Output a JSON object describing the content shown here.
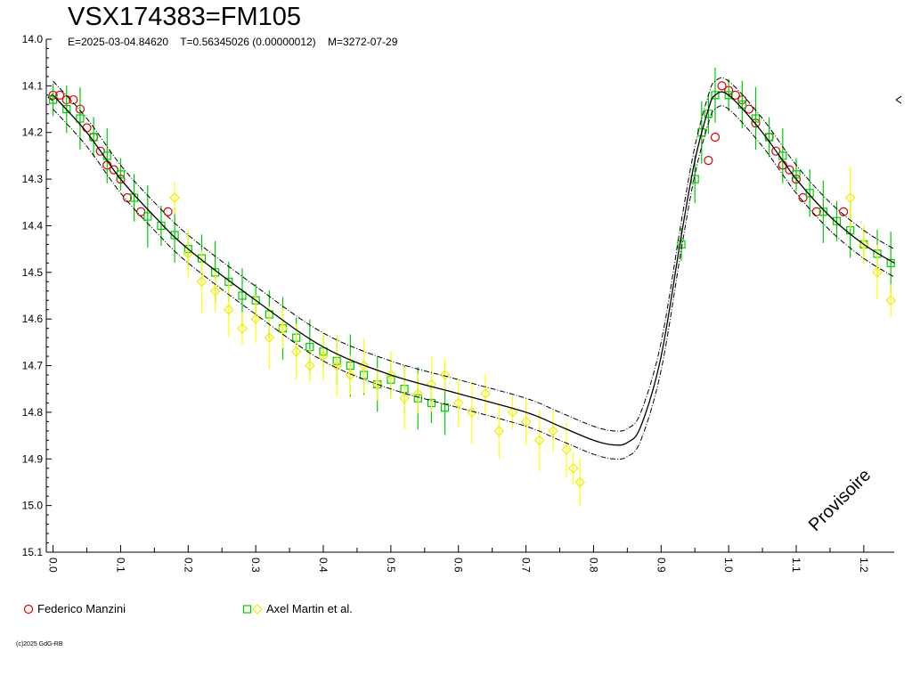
{
  "header": {
    "title": "VSX174383=FM105",
    "ephemeris": "E=2025-03-04.84620    T=0.56345026 (0.00000012)    M=3272-07-29"
  },
  "stamp": "Provisoire",
  "copyright": "(c)2025 GdG-RB",
  "colors": {
    "observer1": "#dd0000",
    "observer2_square": "#00cc00",
    "observer2_diamond": "#ffff00",
    "fit": "#000000"
  },
  "legend": [
    {
      "label": "Federico Manzini",
      "symbols": [
        "circle"
      ]
    },
    {
      "label": "Axel Martin et al.",
      "symbols": [
        "square",
        "diamond"
      ]
    }
  ],
  "chart_data": {
    "type": "scatter",
    "title": "VSX174383=FM105",
    "xlabel": "",
    "ylabel": "",
    "xlim": [
      -0.01,
      1.245
    ],
    "ylim": [
      14.0,
      15.1
    ],
    "y_inverted": true,
    "x_ticks": [
      "0.0",
      "0.1",
      "0.2",
      "0.3",
      "0.4",
      "0.5",
      "0.6",
      "0.7",
      "0.8",
      "0.9",
      "1.0",
      "1.1",
      "1.2"
    ],
    "y_ticks": [
      "14.0",
      "14.1",
      "14.2",
      "14.3",
      "14.4",
      "14.5",
      "14.6",
      "14.7",
      "14.8",
      "14.9",
      "15.0",
      "15.1"
    ],
    "fit_curve": {
      "phase": [
        0.0,
        0.05,
        0.1,
        0.15,
        0.2,
        0.3,
        0.4,
        0.5,
        0.6,
        0.7,
        0.75,
        0.8,
        0.83,
        0.85,
        0.87,
        0.9,
        0.93,
        0.95,
        0.97,
        0.98,
        1.0,
        1.05,
        1.1,
        1.15,
        1.2,
        1.245
      ],
      "mag": [
        14.12,
        14.2,
        14.3,
        14.38,
        14.45,
        14.56,
        14.66,
        14.72,
        14.76,
        14.8,
        14.83,
        14.86,
        14.87,
        14.865,
        14.83,
        14.68,
        14.42,
        14.26,
        14.15,
        14.12,
        14.12,
        14.2,
        14.3,
        14.38,
        14.44,
        14.48
      ],
      "band": 0.03
    },
    "series": [
      {
        "name": "Federico Manzini",
        "marker": "circle",
        "points": [
          [
            0.0,
            14.12
          ],
          [
            0.01,
            14.12
          ],
          [
            0.02,
            14.13
          ],
          [
            0.03,
            14.13
          ],
          [
            0.04,
            14.15
          ],
          [
            0.05,
            14.19
          ],
          [
            0.06,
            14.21
          ],
          [
            0.07,
            14.24
          ],
          [
            0.08,
            14.27
          ],
          [
            0.09,
            14.28
          ],
          [
            0.1,
            14.3
          ],
          [
            0.11,
            14.34
          ],
          [
            0.13,
            14.37
          ],
          [
            0.17,
            14.37
          ],
          [
            0.97,
            14.26
          ],
          [
            0.98,
            14.21
          ],
          [
            0.99,
            14.1
          ],
          [
            1.0,
            14.11
          ],
          [
            1.01,
            14.12
          ],
          [
            1.02,
            14.13
          ],
          [
            1.03,
            14.15
          ],
          [
            1.04,
            14.18
          ],
          [
            1.06,
            14.21
          ],
          [
            1.07,
            14.24
          ],
          [
            1.08,
            14.27
          ],
          [
            1.09,
            14.28
          ],
          [
            1.1,
            14.3
          ],
          [
            1.11,
            14.34
          ],
          [
            1.13,
            14.37
          ],
          [
            1.17,
            14.37
          ]
        ]
      },
      {
        "name": "Axel Martin et al.",
        "marker": "square",
        "points": [
          [
            0.0,
            14.13
          ],
          [
            0.02,
            14.15
          ],
          [
            0.04,
            14.17
          ],
          [
            0.06,
            14.21
          ],
          [
            0.08,
            14.25
          ],
          [
            0.1,
            14.29
          ],
          [
            0.12,
            14.34
          ],
          [
            0.14,
            14.38
          ],
          [
            0.16,
            14.4
          ],
          [
            0.18,
            14.42
          ],
          [
            0.2,
            14.45
          ],
          [
            0.22,
            14.47
          ],
          [
            0.24,
            14.5
          ],
          [
            0.26,
            14.52
          ],
          [
            0.28,
            14.55
          ],
          [
            0.3,
            14.56
          ],
          [
            0.32,
            14.59
          ],
          [
            0.34,
            14.62
          ],
          [
            0.36,
            14.64
          ],
          [
            0.38,
            14.66
          ],
          [
            0.4,
            14.67
          ],
          [
            0.42,
            14.69
          ],
          [
            0.44,
            14.7
          ],
          [
            0.46,
            14.72
          ],
          [
            0.48,
            14.74
          ],
          [
            0.5,
            14.73
          ],
          [
            0.52,
            14.75
          ],
          [
            0.54,
            14.77
          ],
          [
            0.56,
            14.78
          ],
          [
            0.58,
            14.79
          ],
          [
            0.93,
            14.44
          ],
          [
            0.95,
            14.3
          ],
          [
            0.96,
            14.2
          ],
          [
            0.97,
            14.16
          ],
          [
            0.98,
            14.12
          ],
          [
            1.0,
            14.12
          ],
          [
            1.02,
            14.14
          ],
          [
            1.04,
            14.17
          ],
          [
            1.06,
            14.21
          ],
          [
            1.08,
            14.25
          ],
          [
            1.1,
            14.29
          ],
          [
            1.12,
            14.33
          ],
          [
            1.14,
            14.37
          ],
          [
            1.16,
            14.39
          ],
          [
            1.18,
            14.41
          ],
          [
            1.2,
            14.44
          ],
          [
            1.22,
            14.46
          ],
          [
            1.24,
            14.48
          ]
        ]
      },
      {
        "name": "Axel Martin et al.",
        "marker": "diamond",
        "points": [
          [
            0.18,
            14.34
          ],
          [
            0.2,
            14.46
          ],
          [
            0.22,
            14.52
          ],
          [
            0.24,
            14.54
          ],
          [
            0.26,
            14.58
          ],
          [
            0.28,
            14.62
          ],
          [
            0.3,
            14.6
          ],
          [
            0.32,
            14.64
          ],
          [
            0.34,
            14.62
          ],
          [
            0.36,
            14.67
          ],
          [
            0.38,
            14.7
          ],
          [
            0.4,
            14.68
          ],
          [
            0.42,
            14.7
          ],
          [
            0.44,
            14.72
          ],
          [
            0.46,
            14.7
          ],
          [
            0.48,
            14.74
          ],
          [
            0.5,
            14.72
          ],
          [
            0.52,
            14.77
          ],
          [
            0.54,
            14.76
          ],
          [
            0.56,
            14.74
          ],
          [
            0.58,
            14.72
          ],
          [
            0.6,
            14.78
          ],
          [
            0.62,
            14.8
          ],
          [
            0.64,
            14.76
          ],
          [
            0.66,
            14.84
          ],
          [
            0.68,
            14.8
          ],
          [
            0.7,
            14.82
          ],
          [
            0.72,
            14.86
          ],
          [
            0.74,
            14.84
          ],
          [
            0.76,
            14.88
          ],
          [
            0.77,
            14.92
          ],
          [
            0.78,
            14.95
          ],
          [
            1.18,
            14.34
          ],
          [
            1.2,
            14.44
          ],
          [
            1.22,
            14.5
          ],
          [
            1.24,
            14.56
          ]
        ]
      }
    ]
  }
}
